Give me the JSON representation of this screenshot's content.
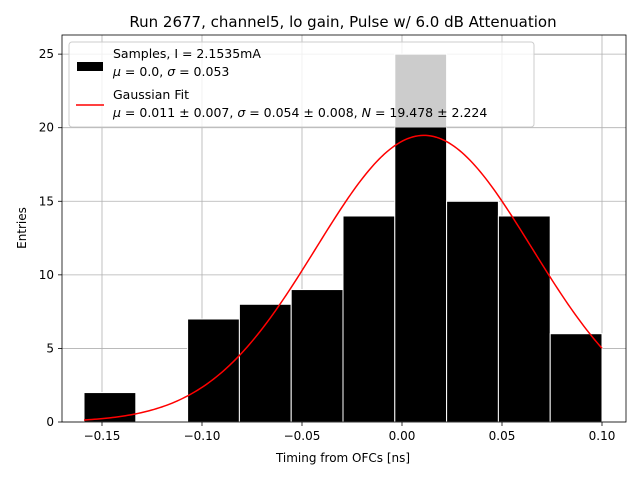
{
  "chart_data": {
    "type": "bar",
    "title": "Run 2677, channel5, lo gain, Pulse w/ 6.0 dB Attenuation",
    "xlabel": "Timing from OFCs [ns]",
    "ylabel": "Entries",
    "xlim": [
      -0.17,
      0.112
    ],
    "ylim": [
      0,
      26.3
    ],
    "grid": true,
    "xticks": [
      -0.15,
      -0.1,
      -0.05,
      0.0,
      0.05,
      0.1
    ],
    "xtick_labels": [
      "−0.15",
      "−0.10",
      "−0.05",
      "0.00",
      "0.05",
      "0.10"
    ],
    "yticks": [
      0,
      5,
      10,
      15,
      20,
      25
    ],
    "ytick_labels": [
      "0",
      "5",
      "10",
      "15",
      "20",
      "25"
    ],
    "bin_edges": [
      -0.159,
      -0.1331,
      -0.1072,
      -0.0813,
      -0.0554,
      -0.0295,
      -0.0036,
      0.0223,
      0.0482,
      0.0741,
      0.1
    ],
    "counts": [
      2,
      0,
      7,
      8,
      9,
      14,
      25,
      15,
      14,
      6
    ],
    "fit": {
      "type": "gaussian",
      "mu": 0.011,
      "sigma": 0.054,
      "N": 19.478,
      "x_range": [
        -0.159,
        0.1
      ],
      "color": "#ff0000"
    },
    "legend": {
      "position": "top-left",
      "entries": [
        {
          "name": "Samples",
          "line1": "Samples, I = 2.1535mA",
          "line2_parts": [
            "μ",
            " = 0.0, ",
            "σ",
            " = 0.053"
          ],
          "color": "#000000"
        },
        {
          "name": "Gaussian Fit",
          "line1": "Gaussian Fit",
          "line2_parts": [
            "μ",
            " = 0.011 ± 0.007, ",
            "σ",
            " = 0.054 ± 0.008, ",
            "N",
            " = 19.478 ± 2.224"
          ],
          "color": "#ff0000"
        }
      ]
    }
  }
}
